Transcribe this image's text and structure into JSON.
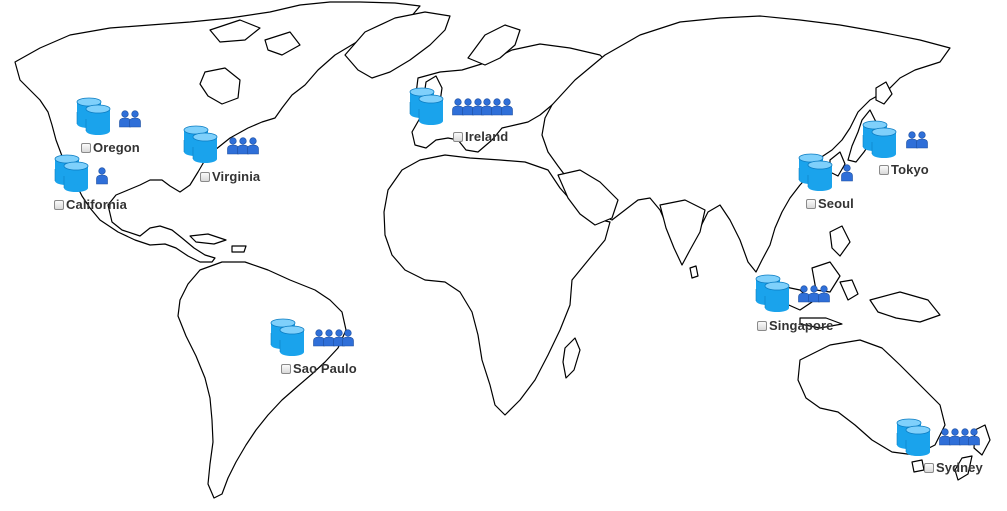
{
  "map": {
    "land_fill": "#ffffff",
    "border_color": "#000000",
    "background": "#ffffff"
  },
  "colors": {
    "database": "#1aa3ec",
    "database_dark": "#0b7cc2",
    "user": "#2f6fd8"
  },
  "regions": [
    {
      "id": "oregon",
      "name": "Oregon",
      "users": 2,
      "checked": false,
      "icon": "database-icon"
    },
    {
      "id": "california",
      "name": "California",
      "users": 1,
      "checked": false,
      "icon": "database-icon"
    },
    {
      "id": "virginia",
      "name": "Virginia",
      "users": 3,
      "checked": false,
      "icon": "database-icon"
    },
    {
      "id": "ireland",
      "name": "Ireland",
      "users": 6,
      "checked": false,
      "icon": "database-icon"
    },
    {
      "id": "tokyo",
      "name": "Tokyo",
      "users": 2,
      "checked": false,
      "icon": "database-icon"
    },
    {
      "id": "seoul",
      "name": "Seoul",
      "users": 1,
      "checked": false,
      "icon": "database-icon"
    },
    {
      "id": "singapore",
      "name": "Singapore",
      "users": 3,
      "checked": false,
      "icon": "database-icon"
    },
    {
      "id": "sao-paulo",
      "name": "Sao Paulo",
      "users": 4,
      "checked": false,
      "icon": "database-icon"
    },
    {
      "id": "sydney",
      "name": "Sydney",
      "users": 4,
      "checked": false,
      "icon": "database-icon"
    }
  ]
}
